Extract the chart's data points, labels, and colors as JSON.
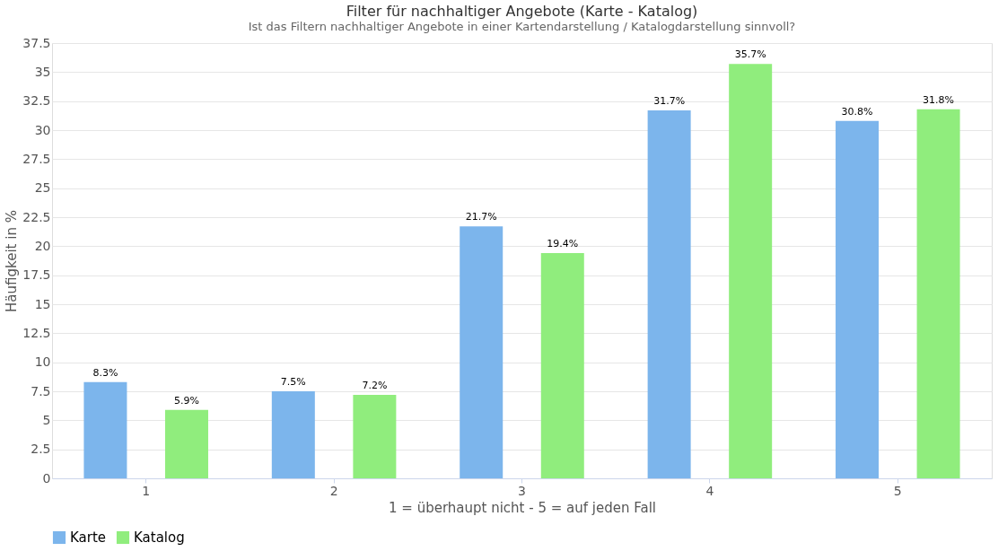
{
  "chart_data": {
    "type": "bar",
    "title": "Filter für nachhaltiger Angebote (Karte - Katalog)",
    "subtitle": "Ist das Filtern nachhaltiger Angebote in einer Kartendarstellung / Katalogdarstellung sinnvoll?",
    "xlabel": "1 = überhaupt nicht - 5 = auf jeden Fall",
    "ylabel": "Häufigkeit in %",
    "categories": [
      "1",
      "2",
      "3",
      "4",
      "5"
    ],
    "series": [
      {
        "name": "Karte",
        "color": "#7cb5ec",
        "values": [
          8.3,
          7.5,
          21.7,
          31.7,
          30.8
        ],
        "value_labels": [
          "8.3%",
          "7.5%",
          "21.7%",
          "31.7%",
          "30.8%"
        ]
      },
      {
        "name": "Katalog",
        "color": "#90ed7d",
        "values": [
          5.9,
          7.2,
          19.4,
          35.7,
          31.8
        ],
        "value_labels": [
          "5.9%",
          "7.2%",
          "19.4%",
          "35.7%",
          "31.8%"
        ]
      }
    ],
    "ylim": [
      0,
      37.5
    ],
    "yticks": [
      0,
      2.5,
      5,
      7.5,
      10,
      12.5,
      15,
      17.5,
      20,
      22.5,
      25,
      27.5,
      30,
      32.5,
      35,
      37.5
    ],
    "grid": "y",
    "legend": "bottom"
  }
}
